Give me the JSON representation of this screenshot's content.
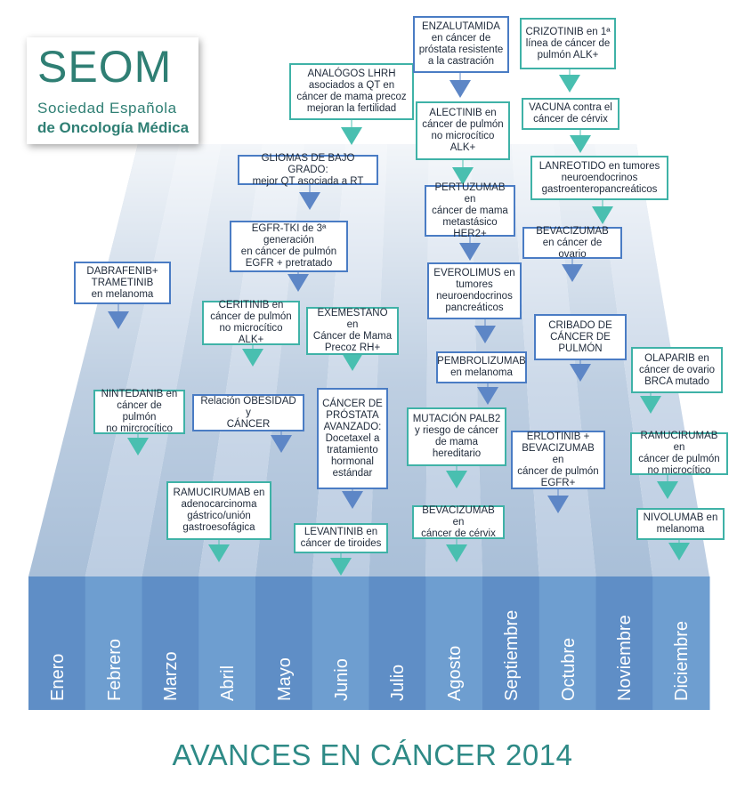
{
  "title": "AVANCES EN CÁNCER 2014",
  "logo": {
    "acronym": "SEOM",
    "line1": "Sociedad Española",
    "line2": "de Oncología Médica"
  },
  "colors": {
    "blue_marker": "#5d86c6",
    "teal_marker": "#49bfb0",
    "band_dark": "#5f8ec6",
    "band_light": "#6e9ed0",
    "title_teal": "#2e8a86",
    "logo_teal": "#2f7f74"
  },
  "months": [
    "Enero",
    "Febrero",
    "Marzo",
    "Abril",
    "Mayo",
    "Junio",
    "Julio",
    "Agosto",
    "Septiembre",
    "Octubre",
    "Noviembre",
    "Diciembre"
  ],
  "milestones": [
    {
      "month": "Enero",
      "text": "DABRAFENIB+\nTRAMETINIB\nen melanoma",
      "marker": "blue"
    },
    {
      "month": "Febrero",
      "text": "NINTEDANIB en\ncáncer de pulmón\nno mircrocítico",
      "marker": "teal"
    },
    {
      "month": "Abril",
      "text": "RAMUCIRUMAB en\nadenocarcinoma\ngástrico/unión\ngastroesofágica",
      "marker": "teal"
    },
    {
      "month": "Abril",
      "text": "Relación OBESIDAD y\nCÁNCER",
      "marker": "blue"
    },
    {
      "month": "Abril",
      "text": "CERITINIB en\ncáncer de pulmón\nno microcítico ALK+",
      "marker": "teal"
    },
    {
      "month": "Mayo",
      "text": "EGFR-TKI de 3ª generación\nen cáncer de pulmón\nEGFR + pretratado",
      "marker": "blue"
    },
    {
      "month": "Mayo",
      "text": "GLIOMAS DE BAJO GRADO:\nmejor QT asociada a RT",
      "marker": "blue"
    },
    {
      "month": "Junio",
      "text": "ANALÓGOS LHRH\nasociados a QT en\ncáncer de mama precoz\nmejoran la fertilidad",
      "marker": "teal"
    },
    {
      "month": "Junio",
      "text": "EXEMESTANO en\nCáncer de Mama\nPrecoz RH+",
      "marker": "teal"
    },
    {
      "month": "Junio",
      "text": "CÁNCER DE\nPRÓSTATA\nAVANZADO:\nDocetaxel a\ntratamiento\nhormonal\nestándar",
      "marker": "blue"
    },
    {
      "month": "Junio",
      "text": "LEVANTINIB en\ncáncer de tiroides",
      "marker": "teal"
    },
    {
      "month": "Agosto",
      "text": "ENZALUTAMIDA\nen cáncer de\npróstata resistente\na la castración",
      "marker": "blue"
    },
    {
      "month": "Agosto",
      "text": "ALECTINIB en\ncáncer de pulmón\nno microcítico\nALK+",
      "marker": "teal"
    },
    {
      "month": "Agosto",
      "text": "PERTUZUMAB en\ncáncer de mama\nmetastásico\nHER2+",
      "marker": "blue"
    },
    {
      "month": "Agosto",
      "text": "EVEROLIMUS en\ntumores\nneuroendocrinos\npancreáticos",
      "marker": "blue"
    },
    {
      "month": "Agosto",
      "text": "PEMBROLIZUMAB\nen melanoma",
      "marker": "blue"
    },
    {
      "month": "Agosto",
      "text": "MUTACIÓN PALB2\ny riesgo de cáncer\nde mama\nhereditario",
      "marker": "teal"
    },
    {
      "month": "Agosto",
      "text": "BEVACIZUMAB en\ncáncer de cérvix",
      "marker": "teal"
    },
    {
      "month": "Octubre",
      "text": "CRIZOTINIB en 1ª\nlínea de cáncer de\npulmón ALK+",
      "marker": "teal"
    },
    {
      "month": "Octubre",
      "text": "VACUNA contra el\ncáncer de cérvix",
      "marker": "teal"
    },
    {
      "month": "Octubre",
      "text": "LANREOTIDO en tumores\nneuroendocrinos\ngastroenteropancreáticos",
      "marker": "teal"
    },
    {
      "month": "Octubre",
      "text": "BEVACIZUMAB\nen cáncer de ovario",
      "marker": "blue"
    },
    {
      "month": "Octubre",
      "text": "CRIBADO DE\nCÁNCER DE\nPULMÓN",
      "marker": "blue"
    },
    {
      "month": "Octubre",
      "text": "ERLOTINIB +\nBEVACIZUMAB en\ncáncer de pulmón\nEGFR+",
      "marker": "blue"
    },
    {
      "month": "Diciembre",
      "text": "OLAPARIB en\ncáncer de ovario\nBRCA mutado",
      "marker": "teal"
    },
    {
      "month": "Diciembre",
      "text": "RAMUCIRUMAB en\ncáncer de pulmón\nno microcítico",
      "marker": "teal"
    },
    {
      "month": "Diciembre",
      "text": "NIVOLUMAB en\nmelanoma",
      "marker": "teal"
    }
  ]
}
